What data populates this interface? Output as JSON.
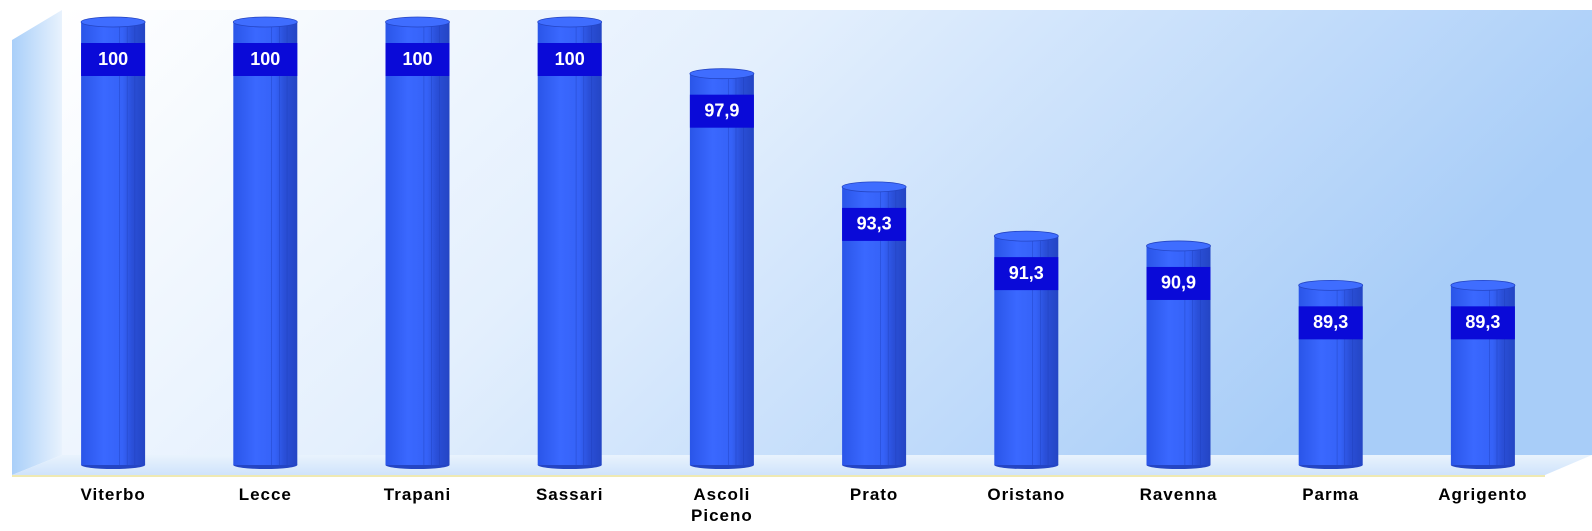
{
  "chart_data": {
    "type": "bar",
    "categories": [
      "Viterbo",
      "Lecce",
      "Trapani",
      "Sassari",
      "Ascoli Piceno",
      "Prato",
      "Oristano",
      "Ravenna",
      "Parma",
      "Agrigento"
    ],
    "values": [
      100,
      100,
      100,
      100,
      97.9,
      93.3,
      91.3,
      90.9,
      89.3,
      89.3
    ],
    "value_labels": [
      "100",
      "100",
      "100",
      "100",
      "97,9",
      "93,3",
      "91,3",
      "90,9",
      "89,3",
      "89,3"
    ],
    "color": "#2f5cf0",
    "ylim": [
      82,
      100
    ]
  }
}
